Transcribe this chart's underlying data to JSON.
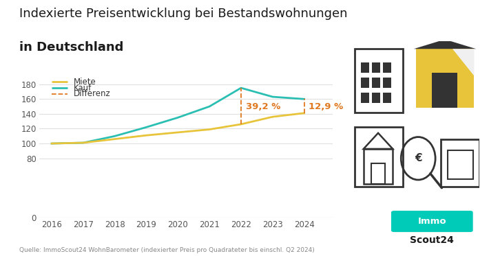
{
  "title_line1": "Indexierte Preisentwicklung bei Bestandswohnungen",
  "title_line2": "in Deutschland",
  "years": [
    2016,
    2017,
    2018,
    2019,
    2020,
    2021,
    2022,
    2023,
    2024
  ],
  "miete": [
    100,
    101,
    106,
    111,
    115,
    119,
    126,
    136,
    141
  ],
  "kauf": [
    100,
    101,
    110,
    122,
    135,
    150,
    175,
    163,
    160
  ],
  "miete_color": "#e8c43a",
  "kauf_color": "#2bbfb3",
  "differenz_color": "#e07820",
  "annotation_2022": "39,2 %",
  "annotation_2024": "12,9 %",
  "legend_miete": "Miete",
  "legend_kauf": "Kauf",
  "legend_differenz": "Differenz",
  "ylabel_ticks": [
    0,
    80,
    100,
    120,
    140,
    160,
    180
  ],
  "source_text": "Quelle: ImmoScout24 WohnBarometer (indexierter Preis pro Quadrateter bis einschl. Q2 2024)",
  "background_color": "#ffffff",
  "grid_color": "#e0e0e0",
  "title_fontsize": 13,
  "axis_fontsize": 8.5,
  "legend_fontsize": 8.5,
  "immo_logo_color": "#00cbb8",
  "icon_dark": "#333333",
  "icon_yellow": "#e8c43a"
}
